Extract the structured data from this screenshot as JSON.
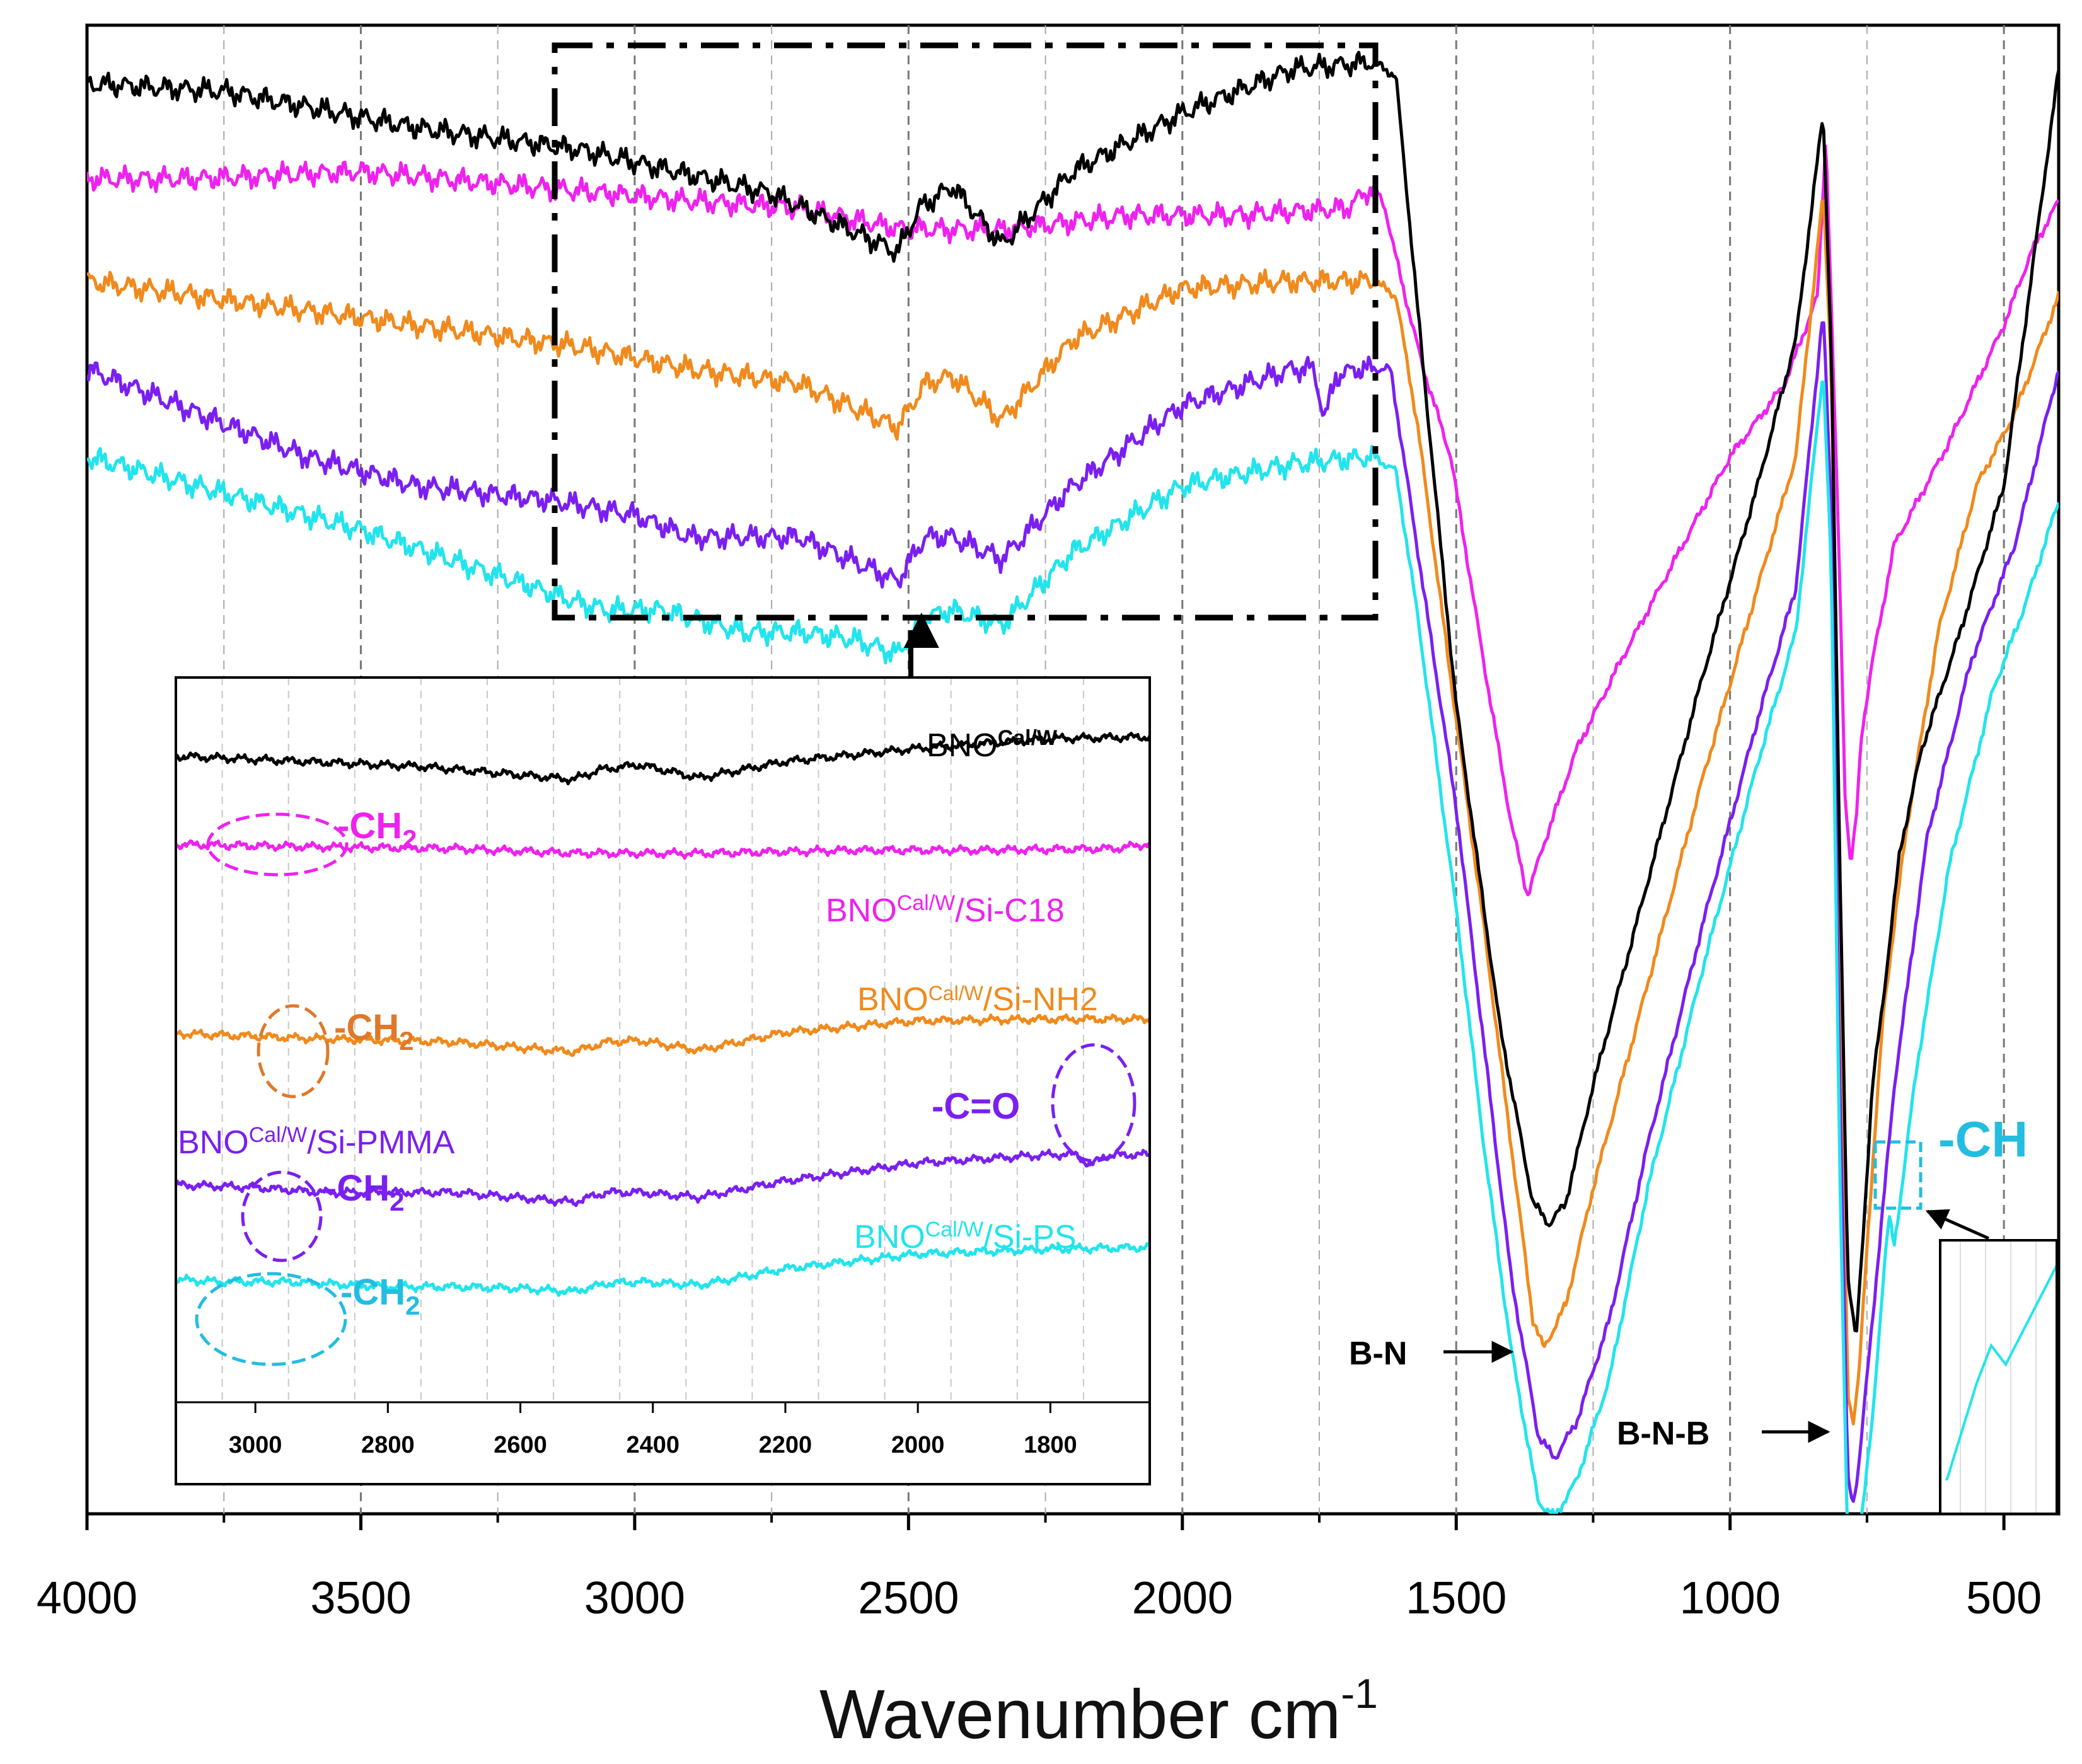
{
  "chart_data": {
    "type": "line",
    "title": "",
    "xlabel": "Wavenumber cm",
    "xlabel_sup": "-1",
    "ylabel": "",
    "x_reversed": true,
    "xlim": [
      4000,
      400
    ],
    "xticks": [
      4000,
      3500,
      3000,
      2500,
      2000,
      1500,
      1000,
      500
    ],
    "grid": "dashed vertical",
    "colors": {
      "BNO": "#000000",
      "C18": "#ee22ee",
      "NH2": "#f08a1c",
      "PMMA": "#7a1ff0",
      "PS": "#22e4ec"
    },
    "series": [
      {
        "key": "BNO",
        "name": "BNO",
        "sup": "Cal/W",
        "suffix": "",
        "offset": 1.0,
        "points": [
          [
            4000,
            0.975
          ],
          [
            3750,
            0.97
          ],
          [
            3400,
            0.945
          ],
          [
            3100,
            0.93
          ],
          [
            2750,
            0.9
          ],
          [
            2520,
            0.86
          ],
          [
            2480,
            0.89
          ],
          [
            2420,
            0.905
          ],
          [
            2330,
            0.865
          ],
          [
            2200,
            0.915
          ],
          [
            2000,
            0.955
          ],
          [
            1800,
            0.985
          ],
          [
            1650,
            0.99
          ],
          [
            1610,
            0.98
          ],
          [
            1560,
            0.78
          ],
          [
            1500,
            0.55
          ],
          [
            1420,
            0.33
          ],
          [
            1360,
            0.21
          ],
          [
            1330,
            0.195
          ],
          [
            1300,
            0.21
          ],
          [
            1250,
            0.29
          ],
          [
            1150,
            0.43
          ],
          [
            1050,
            0.57
          ],
          [
            950,
            0.7
          ],
          [
            880,
            0.8
          ],
          [
            830,
            0.955
          ],
          [
            815,
            0.79
          ],
          [
            800,
            0.45
          ],
          [
            785,
            0.16
          ],
          [
            770,
            0.115
          ],
          [
            755,
            0.2
          ],
          [
            740,
            0.29
          ],
          [
            720,
            0.35
          ],
          [
            690,
            0.45
          ],
          [
            650,
            0.52
          ],
          [
            580,
            0.6
          ],
          [
            500,
            0.7
          ],
          [
            400,
            0.985
          ]
        ]
      },
      {
        "key": "C18",
        "name": "BNO",
        "sup": "Cal/W",
        "suffix": "/Si-C18",
        "offset": 0.0,
        "points": [
          [
            4000,
            0.91
          ],
          [
            3800,
            0.91
          ],
          [
            3500,
            0.915
          ],
          [
            3200,
            0.905
          ],
          [
            2900,
            0.895
          ],
          [
            2700,
            0.89
          ],
          [
            2520,
            0.876
          ],
          [
            2330,
            0.875
          ],
          [
            2100,
            0.885
          ],
          [
            1900,
            0.885
          ],
          [
            1700,
            0.89
          ],
          [
            1650,
            0.905
          ],
          [
            1630,
            0.89
          ],
          [
            1600,
            0.84
          ],
          [
            1560,
            0.78
          ],
          [
            1510,
            0.72
          ],
          [
            1450,
            0.58
          ],
          [
            1400,
            0.47
          ],
          [
            1370,
            0.42
          ],
          [
            1340,
            0.455
          ],
          [
            1280,
            0.52
          ],
          [
            1200,
            0.58
          ],
          [
            1100,
            0.65
          ],
          [
            1000,
            0.72
          ],
          [
            900,
            0.77
          ],
          [
            840,
            0.83
          ],
          [
            825,
            0.94
          ],
          [
            815,
            0.82
          ],
          [
            800,
            0.64
          ],
          [
            790,
            0.49
          ],
          [
            780,
            0.44
          ],
          [
            770,
            0.47
          ],
          [
            760,
            0.53
          ],
          [
            740,
            0.58
          ],
          [
            700,
            0.66
          ],
          [
            600,
            0.73
          ],
          [
            500,
            0.81
          ],
          [
            450,
            0.86
          ],
          [
            400,
            0.895
          ]
        ]
      },
      {
        "key": "NH2",
        "name": "BNO",
        "sup": "Cal/W",
        "suffix": "/Si-NH2",
        "offset": 0.0,
        "points": [
          [
            4000,
            0.84
          ],
          [
            3700,
            0.825
          ],
          [
            3400,
            0.81
          ],
          [
            3100,
            0.795
          ],
          [
            2900,
            0.78
          ],
          [
            2700,
            0.77
          ],
          [
            2520,
            0.74
          ],
          [
            2470,
            0.77
          ],
          [
            2420,
            0.775
          ],
          [
            2330,
            0.745
          ],
          [
            2200,
            0.8
          ],
          [
            2000,
            0.835
          ],
          [
            1800,
            0.84
          ],
          [
            1650,
            0.84
          ],
          [
            1610,
            0.83
          ],
          [
            1570,
            0.74
          ],
          [
            1500,
            0.54
          ],
          [
            1450,
            0.4
          ],
          [
            1400,
            0.25
          ],
          [
            1360,
            0.13
          ],
          [
            1340,
            0.11
          ],
          [
            1300,
            0.14
          ],
          [
            1250,
            0.22
          ],
          [
            1150,
            0.36
          ],
          [
            1050,
            0.5
          ],
          [
            950,
            0.63
          ],
          [
            880,
            0.72
          ],
          [
            830,
            0.9
          ],
          [
            815,
            0.78
          ],
          [
            800,
            0.4
          ],
          [
            785,
            0.08
          ],
          [
            775,
            0.06
          ],
          [
            765,
            0.09
          ],
          [
            750,
            0.18
          ],
          [
            720,
            0.34
          ],
          [
            680,
            0.46
          ],
          [
            620,
            0.6
          ],
          [
            550,
            0.7
          ],
          [
            480,
            0.75
          ],
          [
            400,
            0.83
          ]
        ]
      },
      {
        "key": "PMMA",
        "name": "BNO",
        "sup": "Cal/W",
        "suffix": "/Si-PMMA",
        "offset": 0.0,
        "points": [
          [
            4000,
            0.78
          ],
          [
            3800,
            0.75
          ],
          [
            3600,
            0.72
          ],
          [
            3400,
            0.7
          ],
          [
            3150,
            0.69
          ],
          [
            3000,
            0.68
          ],
          [
            2900,
            0.665
          ],
          [
            2700,
            0.665
          ],
          [
            2520,
            0.635
          ],
          [
            2470,
            0.665
          ],
          [
            2420,
            0.665
          ],
          [
            2330,
            0.65
          ],
          [
            2200,
            0.7
          ],
          [
            2000,
            0.755
          ],
          [
            1800,
            0.78
          ],
          [
            1760,
            0.78
          ],
          [
            1740,
            0.745
          ],
          [
            1720,
            0.775
          ],
          [
            1680,
            0.78
          ],
          [
            1620,
            0.78
          ],
          [
            1580,
            0.68
          ],
          [
            1500,
            0.48
          ],
          [
            1450,
            0.32
          ],
          [
            1400,
            0.16
          ],
          [
            1350,
            0.05
          ],
          [
            1320,
            0.035
          ],
          [
            1280,
            0.06
          ],
          [
            1220,
            0.13
          ],
          [
            1150,
            0.25
          ],
          [
            1050,
            0.4
          ],
          [
            950,
            0.54
          ],
          [
            880,
            0.63
          ],
          [
            830,
            0.82
          ],
          [
            815,
            0.68
          ],
          [
            800,
            0.3
          ],
          [
            785,
            0.02
          ],
          [
            775,
            0.005
          ],
          [
            765,
            0.03
          ],
          [
            740,
            0.13
          ],
          [
            700,
            0.29
          ],
          [
            640,
            0.46
          ],
          [
            560,
            0.58
          ],
          [
            480,
            0.66
          ],
          [
            400,
            0.78
          ]
        ]
      },
      {
        "key": "PS",
        "name": "BNO",
        "sup": "Cal/W",
        "suffix": "/Si-PS",
        "offset": 0.0,
        "points": [
          [
            4000,
            0.72
          ],
          [
            3800,
            0.7
          ],
          [
            3650,
            0.685
          ],
          [
            3500,
            0.67
          ],
          [
            3300,
            0.645
          ],
          [
            3100,
            0.62
          ],
          [
            3050,
            0.615
          ],
          [
            2950,
            0.615
          ],
          [
            2800,
            0.6
          ],
          [
            2700,
            0.6
          ],
          [
            2600,
            0.595
          ],
          [
            2520,
            0.585
          ],
          [
            2470,
            0.61
          ],
          [
            2420,
            0.615
          ],
          [
            2330,
            0.605
          ],
          [
            2200,
            0.655
          ],
          [
            2000,
            0.7
          ],
          [
            1800,
            0.715
          ],
          [
            1650,
            0.72
          ],
          [
            1610,
            0.71
          ],
          [
            1570,
            0.61
          ],
          [
            1500,
            0.41
          ],
          [
            1450,
            0.25
          ],
          [
            1400,
            0.11
          ],
          [
            1350,
            0.005
          ],
          [
            1320,
            -0.005
          ],
          [
            1280,
            0.02
          ],
          [
            1220,
            0.09
          ],
          [
            1150,
            0.22
          ],
          [
            1050,
            0.37
          ],
          [
            950,
            0.51
          ],
          [
            880,
            0.6
          ],
          [
            830,
            0.78
          ],
          [
            815,
            0.64
          ],
          [
            800,
            0.24
          ],
          [
            785,
            -0.03
          ],
          [
            775,
            -0.045
          ],
          [
            765,
            -0.02
          ],
          [
            740,
            0.06
          ],
          [
            720,
            0.16
          ],
          [
            710,
            0.2
          ],
          [
            700,
            0.18
          ],
          [
            690,
            0.21
          ],
          [
            660,
            0.3
          ],
          [
            600,
            0.44
          ],
          [
            520,
            0.56
          ],
          [
            460,
            0.62
          ],
          [
            400,
            0.69
          ]
        ]
      }
    ],
    "inset": {
      "xlim": [
        3120,
        1650
      ],
      "xticks": [
        3000,
        2800,
        2600,
        2400,
        2200,
        2000,
        1800
      ]
    },
    "annotations": {
      "ch2": "-CH",
      "ch2_sub": "2",
      "co": "-C=O",
      "ch": "-CH",
      "bn": "B-N",
      "bnb": "B-N-B"
    }
  }
}
